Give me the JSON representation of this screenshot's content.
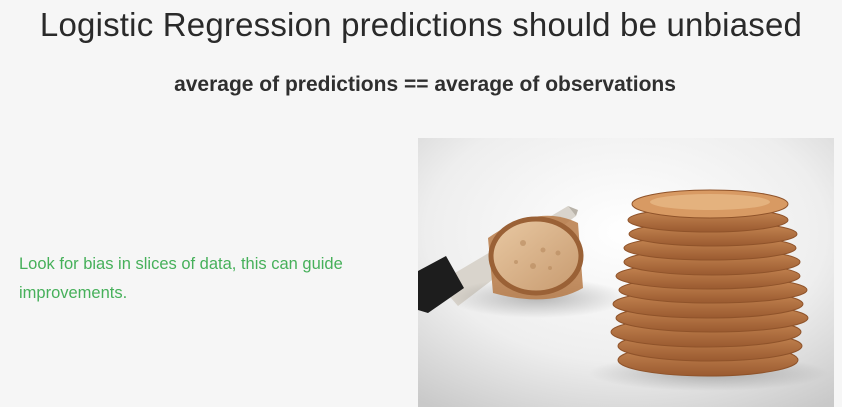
{
  "slide": {
    "title": "Logistic Regression predictions should be unbiased",
    "subtitle": "average of predictions == average of observations",
    "note": "Look for bias in slices of data, this can guide improvements."
  },
  "image": {
    "subject": "bread-slices-photo",
    "colors": {
      "background": "#f6f6f6",
      "note_text": "#46b05a"
    }
  }
}
